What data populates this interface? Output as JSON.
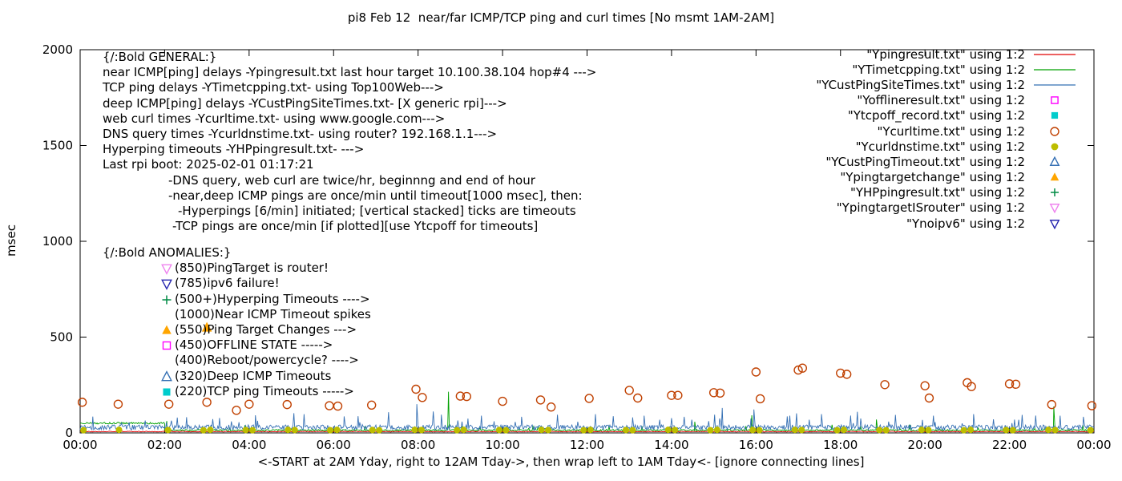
{
  "chart_data": {
    "type": "line+scatter",
    "title": "pi8 Feb 12  near/far ICMP/TCP ping and curl times [No msmt 1AM-2AM]",
    "ylabel": "msec",
    "xlabel": "<-START at 2AM Yday, right to 12AM Tday->, then wrap left to 1AM Tday<- [ignore connecting lines]",
    "ylim": [
      0,
      2000
    ],
    "xlim_hours": [
      0,
      24
    ],
    "y_ticks": [
      0,
      500,
      1000,
      1500,
      2000
    ],
    "x_ticks": [
      "00:00",
      "02:00",
      "04:00",
      "06:00",
      "08:00",
      "10:00",
      "12:00",
      "14:00",
      "16:00",
      "18:00",
      "20:00",
      "22:00",
      "00:00"
    ],
    "grid": false,
    "legend_position": "top-right-inside",
    "series": [
      {
        "name": "Ypingresult",
        "legend_label": "\"Ypingresult.txt\" using 1:2",
        "color": "#e00000",
        "kind": "line",
        "marker": "line",
        "line": {
          "segments": [
            {
              "from": 0,
              "to": 24,
              "base": 5,
              "noise": 4,
              "burst": 0
            }
          ],
          "spikes": []
        }
      },
      {
        "name": "YTimetcpping",
        "legend_label": "\"YTimetcpping.txt\" using 1:2",
        "color": "#00a000",
        "kind": "line",
        "marker": "line",
        "line": {
          "segments": [
            {
              "from": 0,
              "to": 2,
              "base": 46,
              "noise": 9,
              "burst": 0
            },
            {
              "from": 2,
              "to": 24,
              "base": 10,
              "noise": 8,
              "burst": 30
            }
          ],
          "spikes": [
            [
              2.05,
              62
            ],
            [
              8.72,
              215
            ],
            [
              14.55,
              58
            ],
            [
              15.9,
              92
            ],
            [
              18.85,
              70
            ],
            [
              23.05,
              138
            ]
          ]
        }
      },
      {
        "name": "YCustPingSiteTimes",
        "legend_label": "\"YCustPingSiteTimes.txt\" using 1:2",
        "color": "#3570b4",
        "kind": "line",
        "marker": "line",
        "line": {
          "segments": [
            {
              "from": 0,
              "to": 24,
              "base": 16,
              "noise": 26,
              "burst": 70
            }
          ],
          "spikes": [
            [
              0.3,
              85
            ],
            [
              2.3,
              80
            ],
            [
              3.3,
              78
            ],
            [
              4.15,
              92
            ],
            [
              5.3,
              98
            ],
            [
              6.25,
              86
            ],
            [
              7.3,
              108
            ],
            [
              7.97,
              150
            ],
            [
              8.55,
              95
            ],
            [
              9.5,
              90
            ],
            [
              10.45,
              84
            ],
            [
              11.3,
              95
            ],
            [
              12.2,
              98
            ],
            [
              13.35,
              90
            ],
            [
              14.3,
              84
            ],
            [
              15.2,
              130
            ],
            [
              15.95,
              122
            ],
            [
              16.8,
              90
            ],
            [
              17.55,
              98
            ],
            [
              18.4,
              110
            ],
            [
              19.3,
              94
            ],
            [
              20.2,
              90
            ],
            [
              21.15,
              98
            ],
            [
              22.3,
              94
            ],
            [
              23.2,
              90
            ],
            [
              23.75,
              84
            ]
          ]
        }
      },
      {
        "name": "Yofflineresult",
        "legend_label": "\"Yofflineresult.txt\" using 1:2",
        "color": "#ff00ff",
        "kind": "points",
        "marker": "square-open",
        "size": 5,
        "points": []
      },
      {
        "name": "Ytcpoff_record",
        "legend_label": "\"Ytcpoff_record.txt\" using 1:2",
        "color": "#00cccc",
        "kind": "points",
        "marker": "square-filled",
        "size": 5,
        "points": []
      },
      {
        "name": "Ycurltime",
        "legend_label": "\"Ycurltime.txt\" using 1:2",
        "color": "#c04000",
        "kind": "points",
        "marker": "circle-open",
        "size": 5,
        "points": [
          [
            0.05,
            160
          ],
          [
            0.9,
            150
          ],
          [
            2.1,
            150
          ],
          [
            3.0,
            160
          ],
          [
            3.7,
            118
          ],
          [
            4.0,
            150
          ],
          [
            4.9,
            148
          ],
          [
            5.9,
            142
          ],
          [
            6.1,
            140
          ],
          [
            6.9,
            145
          ],
          [
            7.95,
            228
          ],
          [
            8.1,
            185
          ],
          [
            9.0,
            192
          ],
          [
            9.15,
            190
          ],
          [
            10.0,
            165
          ],
          [
            10.9,
            172
          ],
          [
            11.15,
            135
          ],
          [
            12.05,
            180
          ],
          [
            13.0,
            222
          ],
          [
            13.2,
            182
          ],
          [
            14.0,
            196
          ],
          [
            14.15,
            196
          ],
          [
            15.0,
            210
          ],
          [
            15.15,
            208
          ],
          [
            16.0,
            318
          ],
          [
            16.1,
            178
          ],
          [
            17.0,
            328
          ],
          [
            17.1,
            338
          ],
          [
            18.0,
            312
          ],
          [
            18.15,
            306
          ],
          [
            19.05,
            252
          ],
          [
            20.0,
            246
          ],
          [
            20.1,
            182
          ],
          [
            21.0,
            262
          ],
          [
            21.1,
            242
          ],
          [
            22.0,
            256
          ],
          [
            22.15,
            254
          ],
          [
            23.0,
            148
          ],
          [
            23.95,
            142
          ]
        ]
      },
      {
        "name": "Ycurldnstime",
        "legend_label": "\"Ycurldnstime.txt\" using 1:2",
        "color": "#bdbd00",
        "kind": "points",
        "marker": "circle-filled",
        "size": 4.6,
        "points": [
          [
            0.08,
            14
          ],
          [
            0.92,
            16
          ],
          [
            2.08,
            15
          ],
          [
            2.92,
            14
          ],
          [
            3.08,
            16
          ],
          [
            3.92,
            15
          ],
          [
            4.08,
            14
          ],
          [
            4.92,
            16
          ],
          [
            5.08,
            15
          ],
          [
            5.92,
            14
          ],
          [
            6.08,
            16
          ],
          [
            6.92,
            15
          ],
          [
            7.08,
            14
          ],
          [
            7.92,
            16
          ],
          [
            8.08,
            15
          ],
          [
            8.92,
            14
          ],
          [
            9.08,
            16
          ],
          [
            9.92,
            15
          ],
          [
            10.08,
            14
          ],
          [
            10.92,
            16
          ],
          [
            11.08,
            15
          ],
          [
            11.92,
            14
          ],
          [
            12.08,
            16
          ],
          [
            12.92,
            15
          ],
          [
            13.08,
            14
          ],
          [
            13.92,
            16
          ],
          [
            14.08,
            15
          ],
          [
            14.92,
            14
          ],
          [
            15.08,
            16
          ],
          [
            15.92,
            15
          ],
          [
            16.08,
            14
          ],
          [
            16.92,
            16
          ],
          [
            17.08,
            15
          ],
          [
            17.92,
            14
          ],
          [
            18.08,
            16
          ],
          [
            18.92,
            15
          ],
          [
            19.08,
            14
          ],
          [
            19.92,
            16
          ],
          [
            20.08,
            15
          ],
          [
            20.92,
            14
          ],
          [
            21.08,
            16
          ],
          [
            21.92,
            15
          ],
          [
            22.08,
            14
          ],
          [
            22.92,
            16
          ],
          [
            23.08,
            15
          ],
          [
            23.92,
            14
          ]
        ]
      },
      {
        "name": "YCustPingTimeout",
        "legend_label": "\"YCustPingTimeout.txt\" using 1:2",
        "color": "#3570b4",
        "kind": "points",
        "marker": "triangle-up-open",
        "size": 5.5,
        "points": []
      },
      {
        "name": "Ypingtargetchange",
        "legend_label": "\"Ypingtargetchange\" using 1:2",
        "color": "#ffa500",
        "kind": "points",
        "marker": "triangle-up-filled",
        "size": 6,
        "points": [
          [
            3.0,
            550
          ]
        ]
      },
      {
        "name": "YHPpingresult",
        "legend_label": "\"YHPpingresult.txt\" using 1:2",
        "color": "#008b45",
        "kind": "points",
        "marker": "plus",
        "size": 5.5,
        "points": []
      },
      {
        "name": "YpingtargetISrouter",
        "legend_label": "\"YpingtargetISrouter\" using 1:2",
        "color": "#ee82ee",
        "kind": "points",
        "marker": "triangle-down-open",
        "size": 5.5,
        "points": []
      },
      {
        "name": "Ynoipv6",
        "legend_label": "\"Ynoipv6\" using 1:2",
        "color": "#2727b0",
        "kind": "points",
        "marker": "triangle-down-open",
        "size": 5.5,
        "points": []
      }
    ]
  },
  "annotations": {
    "general": {
      "heading": "{/:Bold GENERAL:}",
      "lines": [
        {
          "text": "near ICMP[ping] delays -Ypingresult.txt last hour target 10.100.38.104 hop#4 --->",
          "indent": 0
        },
        {
          "text": "TCP ping delays -YTimetcpping.txt- using Top100Web--->",
          "indent": 0
        },
        {
          "text": "deep ICMP[ping] delays -YCustPingSiteTimes.txt- [X generic rpi]--->",
          "indent": 0
        },
        {
          "text": "web curl times -Ycurltime.txt- using www.google.com--->",
          "indent": 0
        },
        {
          "text": "DNS query times -Ycurldnstime.txt- using router? 192.168.1.1--->",
          "indent": 0
        },
        {
          "text": "Hyperping timeouts -YHPpingresult.txt- --->",
          "indent": 0
        },
        {
          "text": "Last rpi boot: 2025-02-01 01:17:21",
          "indent": 0
        },
        {
          "text": "-DNS query, web curl are twice/hr, beginnng and end of hour",
          "indent": 82
        },
        {
          "text": "-near,deep ICMP pings are once/min until timeout[1000 msec], then:",
          "indent": 82
        },
        {
          "text": "-Hyperpings [6/min] initiated; [vertical stacked] ticks are timeouts",
          "indent": 94
        },
        {
          "text": "-TCP pings are once/min [if plotted][use Ytcpoff for timeouts]",
          "indent": 87
        }
      ]
    },
    "anomalies": {
      "heading": "{/:Bold ANOMALIES:}",
      "items": [
        {
          "marker": "triangle-down-open",
          "color": "#ee82ee",
          "text": "(850)PingTarget is router!"
        },
        {
          "marker": "triangle-down-open",
          "color": "#2727b0",
          "text": "(785)ipv6 failure!"
        },
        {
          "marker": "plus",
          "color": "#008b45",
          "text": "(500+)Hyperping Timeouts ---->"
        },
        {
          "marker": null,
          "color": null,
          "text": "(1000)Near ICMP Timeout spikes"
        },
        {
          "marker": "triangle-up-filled",
          "color": "#ffa500",
          "text": "(550)Ping Target Changes --->"
        },
        {
          "marker": "square-open",
          "color": "#ff00ff",
          "text": "(450)OFFLINE STATE ----->"
        },
        {
          "marker": null,
          "color": null,
          "text": "(400)Reboot/powercycle? ---->"
        },
        {
          "marker": "triangle-up-open",
          "color": "#3570b4",
          "text": "(320)Deep ICMP Timeouts"
        },
        {
          "marker": "square-filled",
          "color": "#00cccc",
          "text": "(220)TCP ping Timeouts ----->"
        }
      ]
    }
  }
}
